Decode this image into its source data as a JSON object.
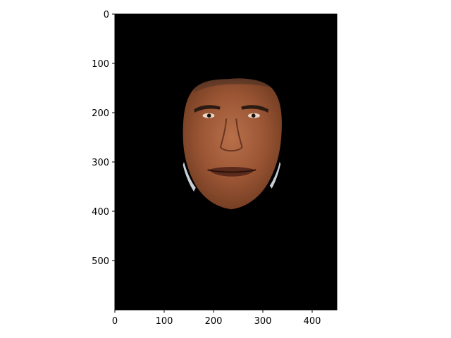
{
  "chart_data": {
    "type": "image",
    "title": "",
    "xlabel": "",
    "ylabel": "",
    "image_width": 450,
    "image_height": 600,
    "xlim": [
      0,
      450
    ],
    "ylim": [
      600,
      0
    ],
    "y_inverted": true,
    "xticks": [
      0,
      100,
      200,
      300,
      400
    ],
    "yticks": [
      0,
      100,
      200,
      300,
      400,
      500
    ],
    "content": "masked face photograph on black background",
    "background_color": "#000000",
    "figure_background": "#ffffff"
  }
}
